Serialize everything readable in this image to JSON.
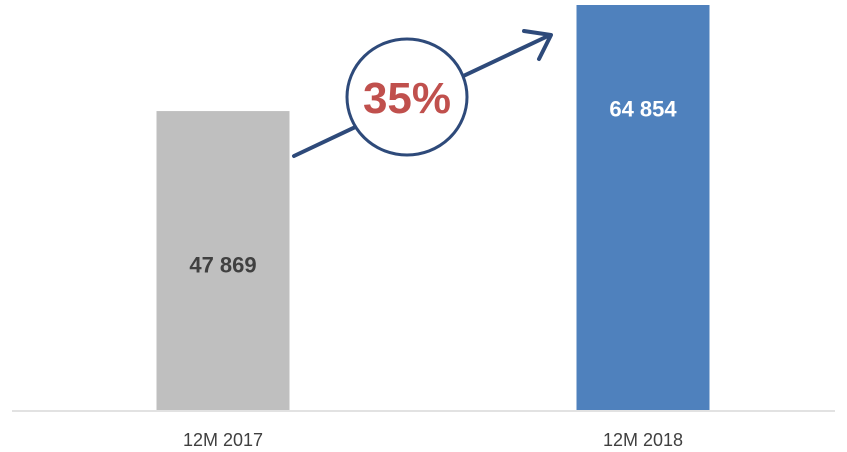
{
  "chart_data": {
    "type": "bar",
    "title": "",
    "xlabel": "",
    "ylabel": "",
    "categories": [
      "12M 2017",
      "12M 2018"
    ],
    "values": [
      47869,
      64854
    ],
    "value_labels": [
      "47 869",
      "64 854"
    ],
    "bar_colors": [
      "#bfbfbf",
      "#4f81bd"
    ],
    "value_label_colors": [
      "#404040",
      "#ffffff"
    ],
    "ylim": [
      0,
      64854
    ],
    "grid": false,
    "legend": "none",
    "growth_annotation": {
      "text": "35%",
      "text_color": "#c0504d",
      "circle_stroke": "#2e4a7a",
      "arrow_color": "#2e4a7a",
      "direction": "up-right"
    }
  }
}
